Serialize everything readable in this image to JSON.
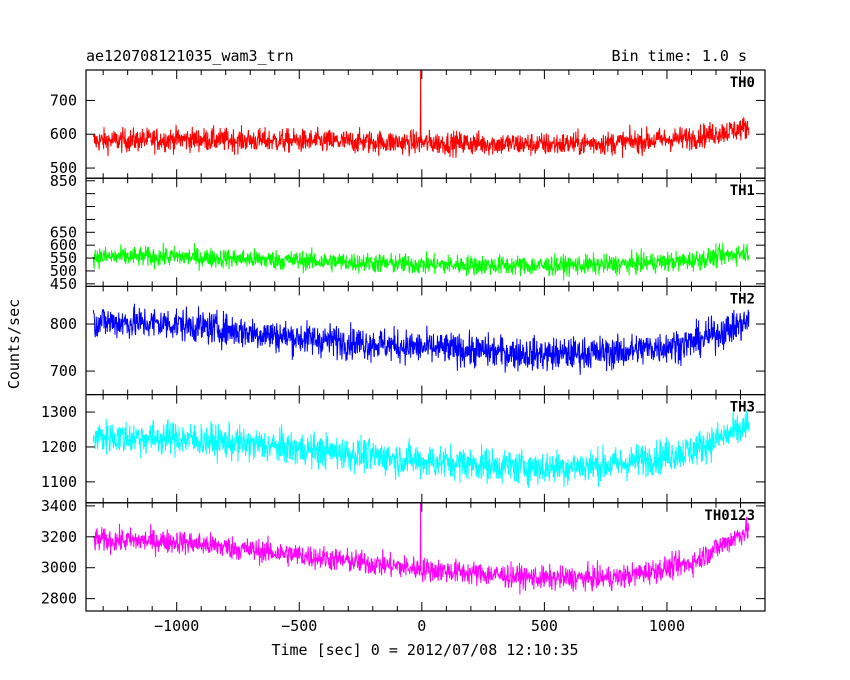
{
  "chart_data": {
    "type": "line",
    "title_left": "ae120708121035_wam3_trn",
    "title_right": "Bin time: 1.0 s",
    "xlabel": "Time [sec] 0 = 2012/07/08 12:10:35",
    "ylabel": "Counts/sec",
    "xlim": [
      -1370,
      1400
    ],
    "x_ticks": [
      -1000,
      -500,
      0,
      500,
      1000
    ],
    "x_tick_labels": [
      "−1000",
      "−500",
      "0",
      "500",
      "1000"
    ],
    "x_data_range": [
      -1340,
      1335
    ],
    "panels": [
      {
        "name": "TH0",
        "color": "#ff0000",
        "ylim": [
          470,
          790
        ],
        "y_ticks": [
          500,
          600,
          700
        ],
        "y_tick_labels": [
          "500",
          "600",
          "700"
        ],
        "baseline": [
          [
            -1340,
            580
          ],
          [
            -1000,
            585
          ],
          [
            -500,
            580
          ],
          [
            0,
            575
          ],
          [
            500,
            570
          ],
          [
            800,
            575
          ],
          [
            1100,
            590
          ],
          [
            1335,
            620
          ]
        ],
        "noise": 25,
        "spike": {
          "x": -5,
          "y": 790
        }
      },
      {
        "name": "TH1",
        "color": "#00ff00",
        "ylim": [
          440,
          860
        ],
        "y_ticks": [
          450,
          500,
          550,
          600,
          650,
          700,
          750,
          800,
          850
        ],
        "y_tick_labels": [
          "450",
          "500",
          "550",
          "600",
          "650",
          "",
          "",
          "",
          "850"
        ],
        "baseline": [
          [
            -1340,
            555
          ],
          [
            -1000,
            555
          ],
          [
            -500,
            540
          ],
          [
            0,
            525
          ],
          [
            500,
            520
          ],
          [
            800,
            525
          ],
          [
            1100,
            540
          ],
          [
            1335,
            575
          ]
        ],
        "noise": 28,
        "spike": null
      },
      {
        "name": "TH2",
        "color": "#0000ff",
        "ylim": [
          650,
          880
        ],
        "y_ticks": [
          700,
          800
        ],
        "y_tick_labels": [
          "700",
          "800"
        ],
        "baseline": [
          [
            -1340,
            805
          ],
          [
            -1000,
            800
          ],
          [
            -500,
            770
          ],
          [
            0,
            750
          ],
          [
            500,
            735
          ],
          [
            800,
            740
          ],
          [
            1100,
            760
          ],
          [
            1335,
            805
          ]
        ],
        "noise": 25,
        "spike": null
      },
      {
        "name": "TH3",
        "color": "#00ffff",
        "ylim": [
          1040,
          1350
        ],
        "y_ticks": [
          1100,
          1200,
          1300
        ],
        "y_tick_labels": [
          "1100",
          "1200",
          "1300"
        ],
        "baseline": [
          [
            -1340,
            1230
          ],
          [
            -1000,
            1225
          ],
          [
            -500,
            1195
          ],
          [
            0,
            1160
          ],
          [
            500,
            1140
          ],
          [
            800,
            1150
          ],
          [
            1100,
            1190
          ],
          [
            1335,
            1260
          ]
        ],
        "noise": 35,
        "spike": null
      },
      {
        "name": "TH0123",
        "color": "#ff00ff",
        "ylim": [
          2720,
          3420
        ],
        "y_ticks": [
          2800,
          3000,
          3200,
          3400
        ],
        "y_tick_labels": [
          "2800",
          "3000",
          "3200",
          "3400"
        ],
        "baseline": [
          [
            -1340,
            3180
          ],
          [
            -1000,
            3170
          ],
          [
            -500,
            3080
          ],
          [
            0,
            2990
          ],
          [
            500,
            2930
          ],
          [
            800,
            2935
          ],
          [
            1100,
            3030
          ],
          [
            1335,
            3250
          ]
        ],
        "noise": 55,
        "spike": {
          "x": -5,
          "y": 3420
        }
      }
    ]
  }
}
